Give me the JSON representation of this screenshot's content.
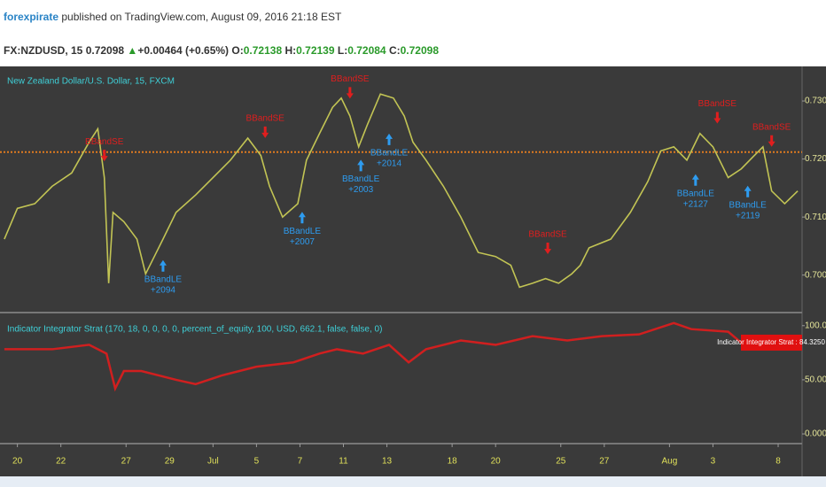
{
  "header": {
    "author": "forexpirate",
    "published": "published on TradingView.com, August 09, 2016 21:18 EST",
    "symbol": "FX:NZDUSD, 15",
    "last": "0.72098",
    "arrow": "▲",
    "change": "+0.00464 (+0.65%)",
    "open_label": "O:",
    "open": "0.72138",
    "high_label": "H:",
    "high": "0.72139",
    "low_label": "L:",
    "low": "0.72084",
    "close_label": "C:",
    "close": "0.72098"
  },
  "chart_data": [
    {
      "type": "line",
      "title": "New Zealand Dollar/U.S. Dollar, 15, FXCM",
      "x": [
        -0.6,
        0,
        0.8,
        1.6,
        2.5,
        3.3,
        3.7,
        4.0,
        4.2,
        4.4,
        4.9,
        5.5,
        5.9,
        6.3,
        6.7,
        7.3,
        8.2,
        9.0,
        9.8,
        10.6,
        11.2,
        11.6,
        12.2,
        12.9,
        13.3,
        13.9,
        14.5,
        14.9,
        15.3,
        15.7,
        16.1,
        16.7,
        17.3,
        17.8,
        18.2,
        18.8,
        19.6,
        20.4,
        21.2,
        22.0,
        22.7,
        23.1,
        23.7,
        24.3,
        24.9,
        25.5,
        25.9,
        26.3,
        27.3,
        28.2,
        29.0,
        29.6,
        30.2,
        30.8,
        31.4,
        32.0,
        32.7,
        33.3,
        33.9,
        34.3,
        34.7,
        35.3,
        35.9
      ],
      "series": [
        {
          "name": "NZDUSD",
          "color": "#c2c454",
          "values": [
            0.7062,
            0.7115,
            0.7123,
            0.7153,
            0.7176,
            0.7229,
            0.7252,
            0.7168,
            0.6986,
            0.7108,
            0.7092,
            0.7062,
            0.7002,
            0.7032,
            0.7062,
            0.7108,
            0.7138,
            0.7168,
            0.7198,
            0.7236,
            0.7206,
            0.7153,
            0.71,
            0.7123,
            0.7198,
            0.7244,
            0.7289,
            0.7305,
            0.7274,
            0.7221,
            0.7259,
            0.7312,
            0.7305,
            0.7274,
            0.7229,
            0.7198,
            0.7153,
            0.71,
            0.7039,
            0.7032,
            0.7017,
            0.6979,
            0.6986,
            0.6994,
            0.6986,
            0.7002,
            0.7017,
            0.7047,
            0.7062,
            0.7108,
            0.7161,
            0.7214,
            0.7221,
            0.7198,
            0.7244,
            0.7221,
            0.7168,
            0.7183,
            0.7206,
            0.7221,
            0.7145,
            0.7123,
            0.7145
          ]
        }
      ],
      "reference_line": 0.7212,
      "reference_color": "#e07b1f",
      "xlim": [
        -0.8,
        36.1
      ],
      "xticks": [
        {
          "value": 0,
          "label": "20"
        },
        {
          "value": 2,
          "label": "22"
        },
        {
          "value": 5,
          "label": "27"
        },
        {
          "value": 7,
          "label": "29"
        },
        {
          "value": 9,
          "label": "Jul"
        },
        {
          "value": 11,
          "label": "5"
        },
        {
          "value": 13,
          "label": "7"
        },
        {
          "value": 15,
          "label": "11"
        },
        {
          "value": 17,
          "label": "13"
        },
        {
          "value": 20,
          "label": "18"
        },
        {
          "value": 22,
          "label": "20"
        },
        {
          "value": 25,
          "label": "25"
        },
        {
          "value": 27,
          "label": "27"
        },
        {
          "value": 30,
          "label": "Aug"
        },
        {
          "value": 32,
          "label": "3"
        },
        {
          "value": 35,
          "label": "8"
        }
      ],
      "ylim": [
        0.694,
        0.7355
      ],
      "yticks": [
        {
          "value": 0.7,
          "label": "0.70000"
        },
        {
          "value": 0.71,
          "label": "0.71000"
        },
        {
          "value": 0.72,
          "label": "0.72000"
        },
        {
          "value": 0.73,
          "label": "0.73000"
        }
      ],
      "signals": [
        {
          "kind": "BBandSE",
          "x": 4.0,
          "price": 0.719
        },
        {
          "kind": "BBandLE",
          "x": 6.7,
          "price": 0.7032,
          "pnl": "+2094"
        },
        {
          "kind": "BBandSE",
          "x": 11.4,
          "price": 0.723
        },
        {
          "kind": "BBandLE",
          "x": 13.1,
          "price": 0.7115,
          "pnl": "+2007"
        },
        {
          "kind": "BBandSE",
          "x": 15.3,
          "price": 0.7298
        },
        {
          "kind": "BBandLE",
          "x": 15.8,
          "price": 0.7205,
          "pnl": "+2003"
        },
        {
          "kind": "BBandLE",
          "x": 17.1,
          "price": 0.725,
          "pnl": "+2014"
        },
        {
          "kind": "BBandSE",
          "x": 24.4,
          "price": 0.703
        },
        {
          "kind": "BBandSE",
          "x": 32.2,
          "price": 0.7255
        },
        {
          "kind": "BBandLE",
          "x": 31.2,
          "price": 0.718,
          "pnl": "+2127"
        },
        {
          "kind": "BBandLE",
          "x": 33.6,
          "price": 0.716,
          "pnl": "+2119"
        },
        {
          "kind": "BBandSE",
          "x": 34.7,
          "price": 0.7215
        }
      ]
    },
    {
      "type": "line",
      "title": "Indicator Integrator Strat (170, 18, 0, 0, 0, 0, percent_of_equity, 100, USD, 662.1, false, false, 0)",
      "x": [
        -0.6,
        1.6,
        3.3,
        4.1,
        4.5,
        4.9,
        5.7,
        7.3,
        8.2,
        9.4,
        11.0,
        12.7,
        13.9,
        14.7,
        15.9,
        17.1,
        18.0,
        18.8,
        20.4,
        22.0,
        23.7,
        25.3,
        26.9,
        28.6,
        30.2,
        31.0,
        32.7,
        33.3
      ],
      "series": [
        {
          "name": "Indicator Integrator Strat",
          "color": "#d01f1f",
          "values": [
            78.2,
            78.2,
            82.3,
            74.2,
            41.9,
            58.1,
            58.1,
            50.0,
            46.0,
            54.0,
            62.1,
            66.1,
            74.2,
            78.2,
            74.2,
            82.3,
            66.1,
            78.2,
            86.3,
            82.3,
            90.3,
            86.3,
            90.3,
            91.9,
            102.4,
            96.8,
            94.4,
            84.325
          ],
          "last_label": "Indicator Integrator Strat : 84.3250"
        }
      ],
      "ylim": [
        -6.5,
        108
      ],
      "yticks": [
        {
          "value": 0,
          "label": "0.0000"
        },
        {
          "value": 50,
          "label": "50.0000"
        },
        {
          "value": 100,
          "label": "100.0000"
        }
      ]
    }
  ]
}
